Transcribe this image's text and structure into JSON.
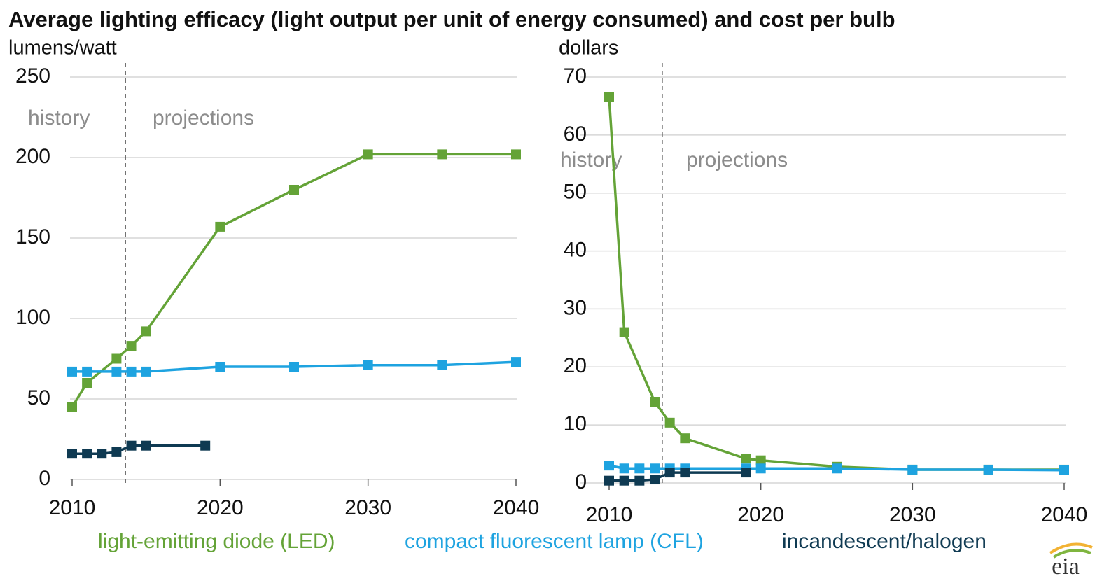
{
  "title": "Average lighting efficacy (light output per unit of energy consumed) and cost per bulb",
  "logo": "eia",
  "chart_data": [
    {
      "type": "line",
      "ylabel": "lumens/watt",
      "annotations": [
        "history",
        "projections"
      ],
      "divider_x": 2013.6,
      "xlim": [
        2010,
        2040
      ],
      "xticks": [
        2010,
        2020,
        2030,
        2040
      ],
      "ylim": [
        0,
        250
      ],
      "yticks": [
        0,
        50,
        100,
        150,
        200,
        250
      ],
      "grid": true,
      "series": [
        {
          "name": "light-emitting diode (LED)",
          "color": "#64a337",
          "x": [
            2010,
            2011,
            2013,
            2014,
            2015,
            2020,
            2025,
            2030,
            2035,
            2040
          ],
          "values": [
            45,
            60,
            75,
            83,
            92,
            157,
            180,
            202,
            202,
            202
          ]
        },
        {
          "name": "compact fluorescent lamp (CFL)",
          "color": "#1ea3e0",
          "x": [
            2010,
            2011,
            2013,
            2014,
            2015,
            2020,
            2025,
            2030,
            2035,
            2040
          ],
          "values": [
            67,
            67,
            67,
            67,
            67,
            70,
            70,
            71,
            71,
            73
          ]
        },
        {
          "name": "incandescent/halogen",
          "color": "#0f3a52",
          "x": [
            2010,
            2011,
            2012,
            2013,
            2014,
            2015,
            2019
          ],
          "values": [
            16,
            16,
            16,
            17,
            21,
            21,
            21
          ]
        }
      ]
    },
    {
      "type": "line",
      "ylabel": "dollars",
      "annotations": [
        "history",
        "projections"
      ],
      "divider_x": 2013.5,
      "xlim": [
        2010,
        2040
      ],
      "xticks": [
        2010,
        2020,
        2030,
        2040
      ],
      "ylim": [
        0,
        70
      ],
      "yticks": [
        0,
        10,
        20,
        30,
        40,
        50,
        60,
        70
      ],
      "grid": true,
      "series": [
        {
          "color": "#64a337",
          "x": [
            2010,
            2011,
            2013,
            2014,
            2015,
            2019,
            2020,
            2025,
            2030,
            2035,
            2040
          ],
          "values": [
            66.5,
            26,
            14,
            10.4,
            7.7,
            4.2,
            3.9,
            2.8,
            2.3,
            2.3,
            2.3
          ]
        },
        {
          "color": "#1ea3e0",
          "x": [
            2010,
            2011,
            2012,
            2013,
            2014,
            2015,
            2019,
            2020,
            2025,
            2030,
            2035,
            2040
          ],
          "values": [
            3,
            2.5,
            2.5,
            2.5,
            2.5,
            2.5,
            2.5,
            2.5,
            2.5,
            2.3,
            2.3,
            2.2
          ]
        },
        {
          "color": "#0f3a52",
          "x": [
            2010,
            2011,
            2012,
            2013,
            2014,
            2015,
            2019
          ],
          "values": [
            0.4,
            0.4,
            0.4,
            0.6,
            1.8,
            1.8,
            1.8
          ]
        }
      ]
    }
  ]
}
